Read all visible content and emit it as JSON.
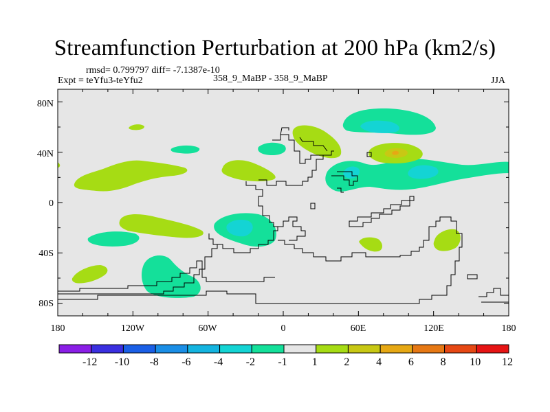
{
  "title": "Streamfunction Perturbation at 200 hPa (km2/s)",
  "stats_line": "rmsd= 0.799797 diff= -7.1387e-10",
  "experiment": "Expt = teYfu3-teYfu2",
  "case_label": "358_9_MaBP - 358_9_MaBP",
  "season": "JJA",
  "lat_ticks": [
    "80N",
    "40N",
    "0",
    "40S",
    "80S"
  ],
  "lon_ticks": [
    "180",
    "120W",
    "60W",
    "0",
    "60E",
    "120E",
    "180"
  ],
  "colorbar": {
    "labels": [
      "-12",
      "-10",
      "-8",
      "-6",
      "-4",
      "-2",
      "-1",
      "1",
      "2",
      "4",
      "6",
      "8",
      "10",
      "12"
    ],
    "colors": [
      "#8a1ee6",
      "#3a2fe0",
      "#1a5fe6",
      "#1a8ee6",
      "#14b4e0",
      "#14d4d4",
      "#14e09a",
      "#e6e6e6",
      "#a6dc14",
      "#c8c814",
      "#e6a814",
      "#e67814",
      "#e64814",
      "#e61414"
    ]
  },
  "colors": {
    "background": "#e6e6e6",
    "neg1": "#14e09a",
    "neg2": "#14d4d4",
    "pos1": "#a6dc14",
    "pos2": "#c8c814",
    "pos3": "#e6a814"
  },
  "chart_data": {
    "type": "contour-map",
    "title": "Streamfunction Perturbation at 200 hPa (km2/s)",
    "lon_range": [
      -180,
      180
    ],
    "lat_range": [
      -90,
      90
    ],
    "levels": [
      -12,
      -10,
      -8,
      -6,
      -4,
      -2,
      -1,
      1,
      2,
      4,
      6,
      8,
      10,
      12
    ],
    "anomalies": [
      {
        "lon": -120,
        "lat": 28,
        "value": 1.5
      },
      {
        "lon": -135,
        "lat": -23,
        "value": 1.5
      },
      {
        "lon": -150,
        "lat": -60,
        "value": 1.5
      },
      {
        "lon": -160,
        "lat": -28,
        "value": -1.5
      },
      {
        "lon": -90,
        "lat": -58,
        "value": -1.5
      },
      {
        "lon": -115,
        "lat": 42,
        "value": -1.5
      },
      {
        "lon": -38,
        "lat": -24,
        "value": -3
      },
      {
        "lon": -40,
        "lat": 29,
        "value": 1.5
      },
      {
        "lon": -10,
        "lat": 43,
        "value": -1.5
      },
      {
        "lon": 30,
        "lat": 50,
        "value": 1.5
      },
      {
        "lon": 70,
        "lat": 60,
        "value": -2.5
      },
      {
        "lon": 90,
        "lat": 39,
        "value": 4
      },
      {
        "lon": 100,
        "lat": 25,
        "value": -3
      },
      {
        "lon": 65,
        "lat": -33,
        "value": 1.5
      },
      {
        "lon": 137,
        "lat": -30,
        "value": 1.5
      }
    ]
  }
}
